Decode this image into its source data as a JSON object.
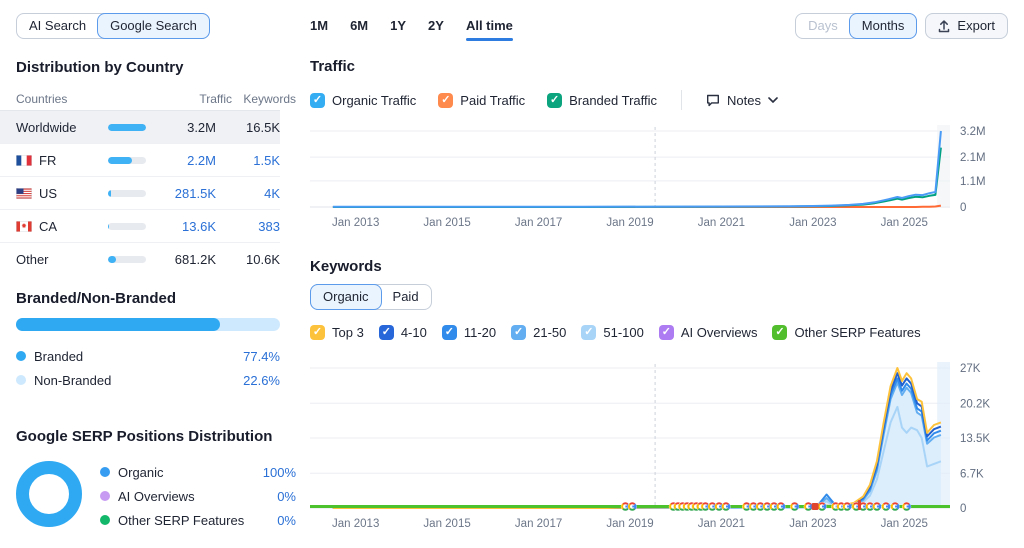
{
  "header": {
    "search_modes": [
      {
        "label": "AI Search",
        "selected": false
      },
      {
        "label": "Google Search",
        "selected": true
      }
    ],
    "periods": [
      {
        "label": "1M",
        "selected": false
      },
      {
        "label": "6M",
        "selected": false
      },
      {
        "label": "1Y",
        "selected": false
      },
      {
        "label": "2Y",
        "selected": false
      },
      {
        "label": "All time",
        "selected": true
      }
    ],
    "granularity": [
      {
        "label": "Days",
        "selected": false,
        "disabled": true
      },
      {
        "label": "Months",
        "selected": true,
        "disabled": false
      }
    ],
    "export_label": "Export"
  },
  "country": {
    "title": "Distribution by Country",
    "columns": [
      "Countries",
      "Traffic",
      "Keywords"
    ],
    "rows": [
      {
        "name": "Worldwide",
        "flag": null,
        "bar_pct": 100,
        "traffic": "3.2M",
        "keywords": "16.5K",
        "selected": true,
        "link": false
      },
      {
        "name": "FR",
        "flag": "fr",
        "bar_pct": 64,
        "traffic": "2.2M",
        "keywords": "1.5K",
        "selected": false,
        "link": true
      },
      {
        "name": "US",
        "flag": "us",
        "bar_pct": 9,
        "traffic": "281.5K",
        "keywords": "4K",
        "selected": false,
        "link": true
      },
      {
        "name": "CA",
        "flag": "ca",
        "bar_pct": 3,
        "traffic": "13.6K",
        "keywords": "383",
        "selected": false,
        "link": true
      },
      {
        "name": "Other",
        "flag": null,
        "bar_pct": 21,
        "traffic": "681.2K",
        "keywords": "10.6K",
        "selected": false,
        "link": false
      }
    ]
  },
  "branded": {
    "title": "Branded/Non-Branded",
    "bar_pct": 77.4,
    "items": [
      {
        "label": "Branded",
        "value": "77.4%",
        "color": "#2FA9F2"
      },
      {
        "label": "Non-Branded",
        "value": "22.6%",
        "color": "#CEE9FD"
      }
    ]
  },
  "serp": {
    "title": "Google SERP Positions Distribution",
    "donut_color": "#2FA9F2",
    "items": [
      {
        "label": "Organic",
        "value": "100%",
        "color": "#359CF1"
      },
      {
        "label": "AI Overviews",
        "value": "0%",
        "color": "#C79BF2"
      },
      {
        "label": "Other SERP Features",
        "value": "0%",
        "color": "#12B76A"
      }
    ]
  },
  "traffic_panel": {
    "title": "Traffic",
    "checkboxes": [
      {
        "label": "Organic Traffic",
        "color": "#35ADF3",
        "checked": true
      },
      {
        "label": "Paid Traffic",
        "color": "#FF8A4D",
        "checked": true
      },
      {
        "label": "Branded Traffic",
        "color": "#0BA47E",
        "checked": true
      }
    ],
    "notes_label": "Notes"
  },
  "keywords_panel": {
    "title": "Keywords",
    "toggle": [
      {
        "label": "Organic",
        "selected": true
      },
      {
        "label": "Paid",
        "selected": false
      }
    ],
    "checkboxes": [
      {
        "label": "Top 3",
        "color": "#FDC23C",
        "checked": true
      },
      {
        "label": "4-10",
        "color": "#2767D9",
        "checked": true
      },
      {
        "label": "11-20",
        "color": "#318BEA",
        "checked": true
      },
      {
        "label": "21-50",
        "color": "#62AEF1",
        "checked": true
      },
      {
        "label": "51-100",
        "color": "#A8D4F8",
        "checked": true
      },
      {
        "label": "AI Overviews",
        "color": "#AD7BF2",
        "checked": true
      },
      {
        "label": "Other SERP Features",
        "color": "#52BE2E",
        "checked": true
      }
    ]
  },
  "chart_data": [
    {
      "type": "line",
      "title": "Traffic",
      "y_unit": "millions of visits per month",
      "xlim": [
        2012,
        2026
      ],
      "xticks": [
        2013,
        2015,
        2017,
        2019,
        2021,
        2023,
        2025
      ],
      "xtick_labels": [
        "Jan 2013",
        "Jan 2015",
        "Jan 2017",
        "Jan 2019",
        "Jan 2021",
        "Jan 2023",
        "Jan 2025"
      ],
      "ylim": [
        0,
        3.2
      ],
      "yticks": [
        0,
        1.1,
        2.1,
        3.2
      ],
      "ytick_labels": [
        "0",
        "1.1M",
        "2.1M",
        "3.2M"
      ],
      "note_line_year": 2019.55,
      "highlight_band": [
        2025.72,
        2026
      ],
      "grid": true,
      "legend_position": "above-chart",
      "x": [
        2012.5,
        2018.0,
        2021.0,
        2022.5,
        2023.0,
        2023.4,
        2023.8,
        2024.1,
        2024.35,
        2024.55,
        2024.7,
        2024.85,
        2024.95,
        2025.1,
        2025.25,
        2025.4,
        2025.55,
        2025.68,
        2025.8
      ],
      "series": [
        {
          "name": "Organic Traffic",
          "color": "#4A9BF5",
          "values": [
            0.01,
            0.01,
            0.02,
            0.03,
            0.04,
            0.06,
            0.09,
            0.13,
            0.2,
            0.28,
            0.35,
            0.42,
            0.38,
            0.46,
            0.52,
            0.5,
            0.58,
            0.63,
            3.2
          ]
        },
        {
          "name": "Branded Traffic",
          "color": "#00A182",
          "values": [
            0,
            0,
            0.01,
            0.02,
            0.03,
            0.04,
            0.07,
            0.1,
            0.16,
            0.23,
            0.29,
            0.35,
            0.31,
            0.38,
            0.43,
            0.41,
            0.47,
            0.51,
            2.5
          ]
        },
        {
          "name": "Paid Traffic",
          "color": "#FF6A35",
          "values": [
            0,
            0,
            0,
            0,
            0,
            0,
            0,
            0,
            0,
            0,
            0,
            0,
            0,
            0,
            0,
            0.01,
            0.01,
            0.02,
            0.06
          ]
        }
      ]
    },
    {
      "type": "line-area",
      "title": "Organic Keywords by Position",
      "y_unit": "thousands of keywords",
      "xlim": [
        2012,
        2026
      ],
      "xticks": [
        2013,
        2015,
        2017,
        2019,
        2021,
        2023,
        2025
      ],
      "xtick_labels": [
        "Jan 2013",
        "Jan 2015",
        "Jan 2017",
        "Jan 2019",
        "Jan 2021",
        "Jan 2023",
        "Jan 2025"
      ],
      "ylim": [
        0,
        27
      ],
      "yticks": [
        0,
        6.7,
        13.5,
        20.2,
        27
      ],
      "ytick_labels": [
        "0",
        "6.7K",
        "13.5K",
        "20.2K",
        "27K"
      ],
      "note_line_year": 2019.55,
      "highlight_band": [
        2025.72,
        2026
      ],
      "grid": true,
      "x": [
        2012.5,
        2018.5,
        2019.0,
        2020.0,
        2021.0,
        2022.0,
        2022.8,
        2023.1,
        2023.3,
        2023.45,
        2023.6,
        2023.9,
        2024.1,
        2024.25,
        2024.4,
        2024.55,
        2024.7,
        2024.85,
        2024.95,
        2025.05,
        2025.15,
        2025.28,
        2025.38,
        2025.5,
        2025.65,
        2025.8
      ],
      "series": [
        {
          "name": "Top 3",
          "color": "#FDC23C",
          "values": [
            0,
            0,
            0.1,
            0.15,
            0.2,
            0.25,
            0.3,
            0.35,
            0.45,
            0.4,
            0.4,
            1.0,
            2.2,
            4.5,
            9.0,
            16.5,
            23.5,
            27.0,
            24.5,
            26.0,
            25.0,
            21.0,
            20.5,
            14.5,
            16.0,
            16.5
          ]
        },
        {
          "name": "4-10",
          "color": "#2160CE",
          "values": [
            0,
            0,
            0.08,
            0.12,
            0.16,
            0.2,
            0.25,
            0.3,
            0.4,
            0.35,
            0.35,
            0.9,
            2.0,
            4.1,
            8.4,
            15.8,
            22.6,
            26.0,
            23.6,
            25.0,
            24.0,
            20.2,
            19.6,
            13.8,
            15.2,
            15.7
          ]
        },
        {
          "name": "11-20",
          "color": "#318BEA",
          "values": [
            0,
            0,
            0.06,
            0.1,
            0.13,
            0.16,
            0.2,
            0.4,
            2.6,
            1.0,
            0.3,
            0.8,
            1.8,
            3.7,
            7.8,
            15.0,
            21.8,
            25.0,
            22.6,
            24.0,
            23.0,
            19.2,
            18.6,
            13.0,
            14.4,
            14.9
          ]
        },
        {
          "name": "21-50",
          "color": "#62AEF1",
          "fill": "#DCEDFC",
          "values": [
            0,
            0,
            0.05,
            0.08,
            0.1,
            0.13,
            0.16,
            0.3,
            1.9,
            0.7,
            0.25,
            0.7,
            1.5,
            3.3,
            7.2,
            14.2,
            21.0,
            24.2,
            21.8,
            23.2,
            22.2,
            18.4,
            17.8,
            12.4,
            13.6,
            14.1
          ]
        },
        {
          "name": "51-100",
          "color": "#A8D4F8",
          "values": [
            0,
            0,
            0.03,
            0.05,
            0.07,
            0.09,
            0.11,
            0.2,
            1.3,
            0.45,
            0.15,
            0.5,
            1.1,
            2.4,
            5.5,
            11.0,
            16.5,
            19.5,
            15.5,
            14.5,
            15.5,
            15.0,
            13.5,
            8.0,
            8.5,
            9.0
          ]
        },
        {
          "name": "Other SERP Features",
          "color": "#4CC22D",
          "baseline": true,
          "values": [
            0,
            0,
            0,
            0,
            0,
            0,
            0,
            0,
            0,
            0,
            0,
            0,
            0,
            0,
            0,
            0,
            0,
            0,
            0,
            0,
            0,
            0,
            0,
            0,
            0,
            0
          ]
        }
      ],
      "google_update_marker_years": [
        2018.9,
        2019.05,
        2019.95,
        2020.05,
        2020.15,
        2020.25,
        2020.35,
        2020.45,
        2020.55,
        2020.65,
        2020.8,
        2020.95,
        2021.1,
        2021.55,
        2021.7,
        2021.85,
        2022.0,
        2022.15,
        2022.3,
        2022.6,
        2022.9,
        2023.2,
        2023.5,
        2023.62,
        2023.75,
        2023.95,
        2024.1,
        2024.25,
        2024.4,
        2024.6,
        2024.8,
        2025.05
      ],
      "red_note_markers": [
        {
          "year": 2023.05,
          "shape": "square"
        },
        {
          "year": 2024.02,
          "shape": "tick"
        }
      ]
    }
  ]
}
